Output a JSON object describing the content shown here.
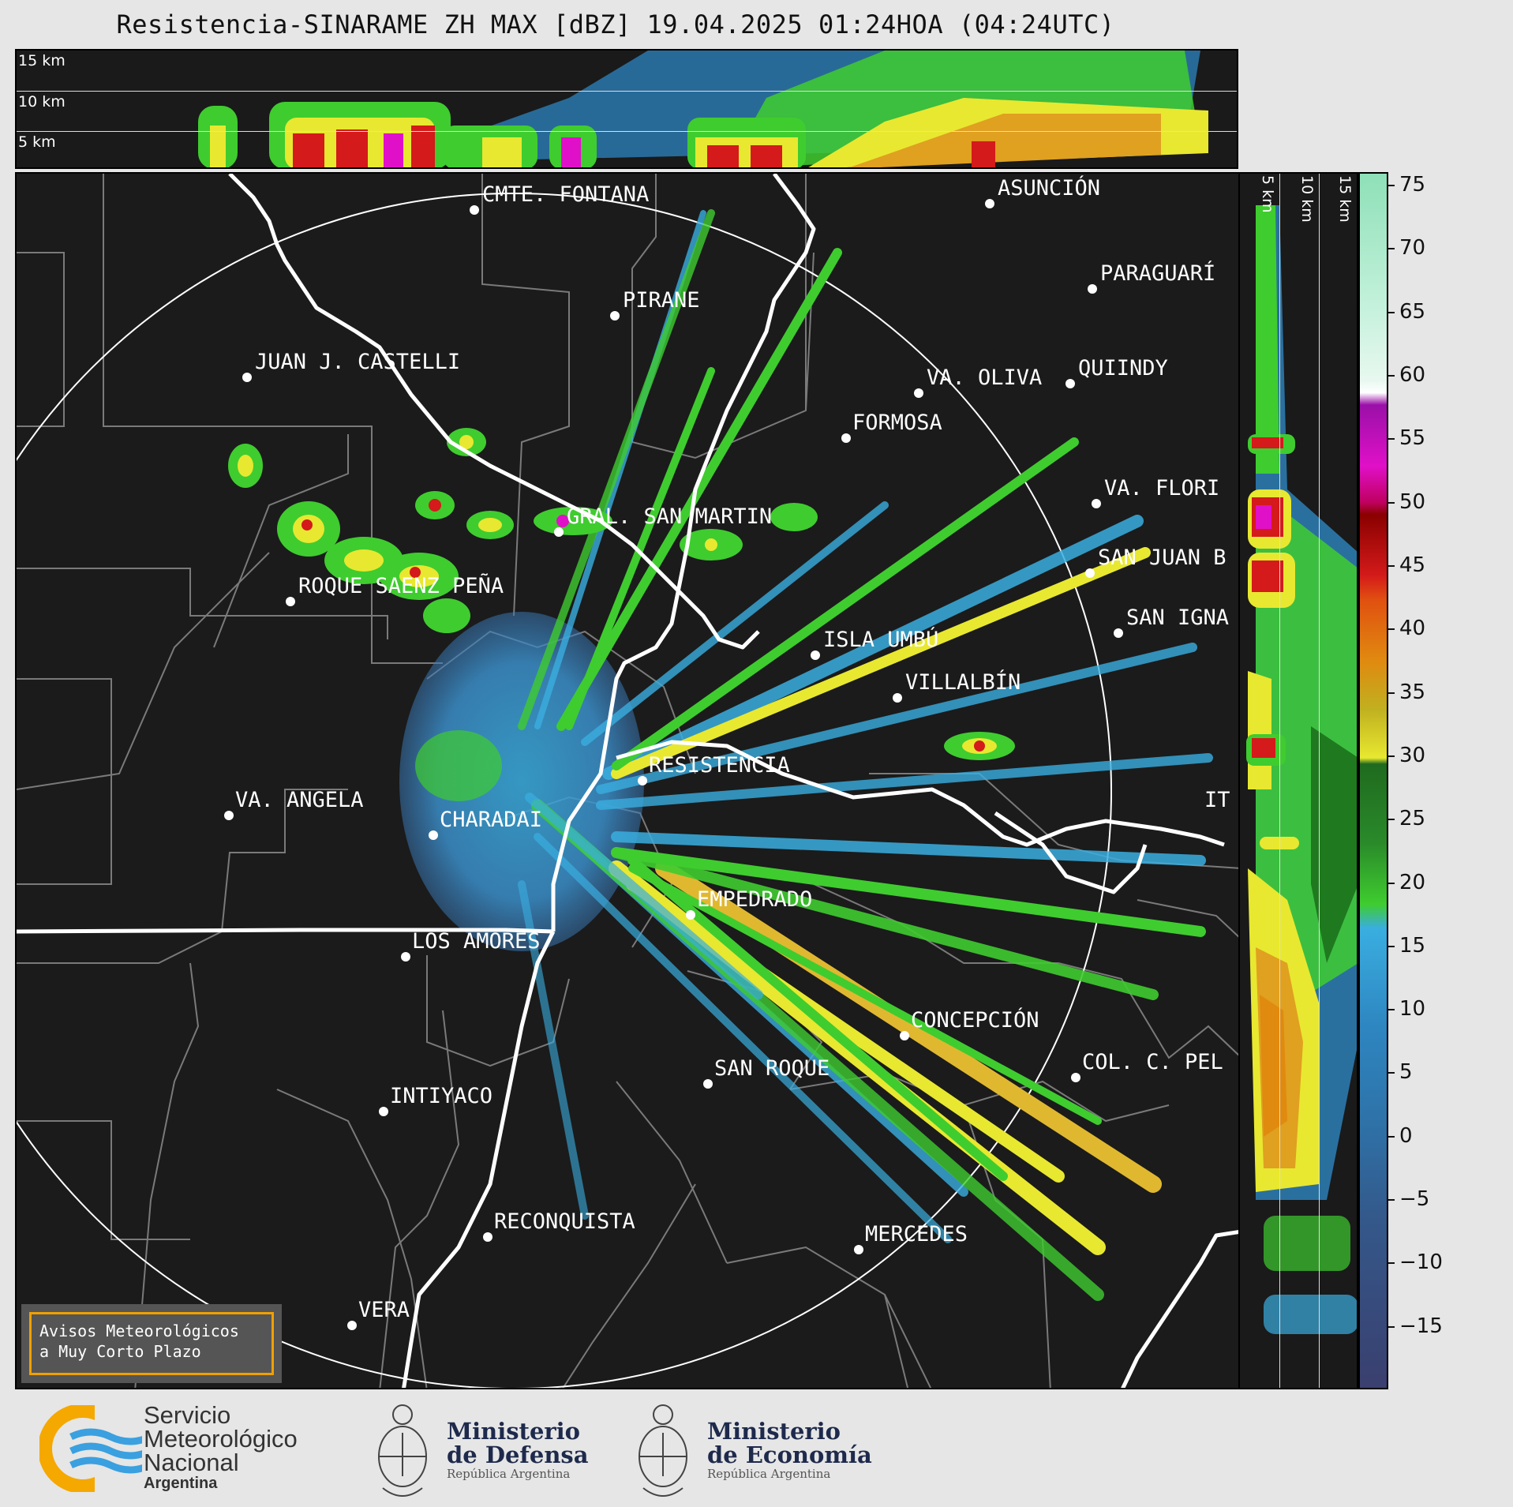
{
  "title": "Resistencia-SINARAME ZH MAX [dBZ] 19.04.2025 01:24HOA (04:24UTC)",
  "top_panel": {
    "levels": [
      "15 km",
      "10 km",
      "5 km"
    ]
  },
  "right_panel": {
    "levels": [
      "5 km",
      "10 km",
      "15 km"
    ]
  },
  "colorbar": {
    "ticks": [
      "75",
      "70",
      "65",
      "60",
      "55",
      "50",
      "45",
      "40",
      "35",
      "30",
      "25",
      "20",
      "15",
      "10",
      "5",
      "0",
      "−5",
      "−10",
      "−15"
    ],
    "tick_values": [
      75,
      70,
      65,
      60,
      55,
      50,
      45,
      40,
      35,
      30,
      25,
      20,
      15,
      10,
      5,
      0,
      -5,
      -10,
      -15
    ],
    "range": [
      -20,
      76
    ],
    "colors": {
      "dark_blue": "#3a3f6e",
      "blue": "#2e86c1",
      "light_blue": "#3aaee0",
      "green": "#3fcc2f",
      "dark_green": "#1f7a1f",
      "yellow": "#e8e830",
      "orange": "#e08a10",
      "red": "#d41a1a",
      "magenta": "#e010c8",
      "purple": "#9a10a8",
      "white": "#ffffff",
      "mint": "#8ee0b8"
    }
  },
  "cities": [
    {
      "name": "CMTE. FONTANA"
    },
    {
      "name": "ASUNCIÓN"
    },
    {
      "name": "PARAGUARÍ"
    },
    {
      "name": "PIRANE"
    },
    {
      "name": "JUAN J. CASTELLI"
    },
    {
      "name": "VA. OLIVA"
    },
    {
      "name": "QUIINDY"
    },
    {
      "name": "FORMOSA"
    },
    {
      "name": "VA. FLORI"
    },
    {
      "name": "GRAL. SAN MARTIN"
    },
    {
      "name": "SAN JUAN B"
    },
    {
      "name": "ROQUE SAENZ PEÑA"
    },
    {
      "name": "SAN IGNA"
    },
    {
      "name": "ISLA UMBÚ"
    },
    {
      "name": "VILLALBÍN"
    },
    {
      "name": "RESISTENCIA"
    },
    {
      "name": "VA. ANGELA"
    },
    {
      "name": "CHARADAI"
    },
    {
      "name": "IT"
    },
    {
      "name": "EMPEDRADO"
    },
    {
      "name": "LOS AMORES"
    },
    {
      "name": "CONCEPCIÓN"
    },
    {
      "name": "COL. C. PEL"
    },
    {
      "name": "SAN ROQUE"
    },
    {
      "name": "INTIYACO"
    },
    {
      "name": "RECONQUISTA"
    },
    {
      "name": "MERCEDES"
    },
    {
      "name": "VERA"
    }
  ],
  "warning": {
    "line1": "Avisos Meteorológicos",
    "line2": "a Muy Corto Plazo"
  },
  "footer": {
    "smn": {
      "line1": "Servicio",
      "line2": "Meteorológico",
      "line3": "Nacional",
      "line4": "Argentina"
    },
    "defensa": {
      "line1": "Ministerio",
      "line2": "de Defensa",
      "sub": "República Argentina"
    },
    "economia": {
      "line1": "Ministerio",
      "line2": "de Economía",
      "sub": "República Argentina"
    }
  }
}
